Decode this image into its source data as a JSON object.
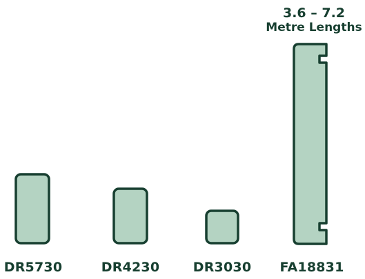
{
  "length_note": {
    "line1": "3.6 – 7.2",
    "line2": "Metre Lengths"
  },
  "profiles": [
    {
      "code": "DR5730"
    },
    {
      "code": "DR4230"
    },
    {
      "code": "DR3030"
    },
    {
      "code": "FA18831"
    }
  ],
  "colors": {
    "fill": "#b4d3c2",
    "outline": "#173f30",
    "text": "#173f30"
  }
}
